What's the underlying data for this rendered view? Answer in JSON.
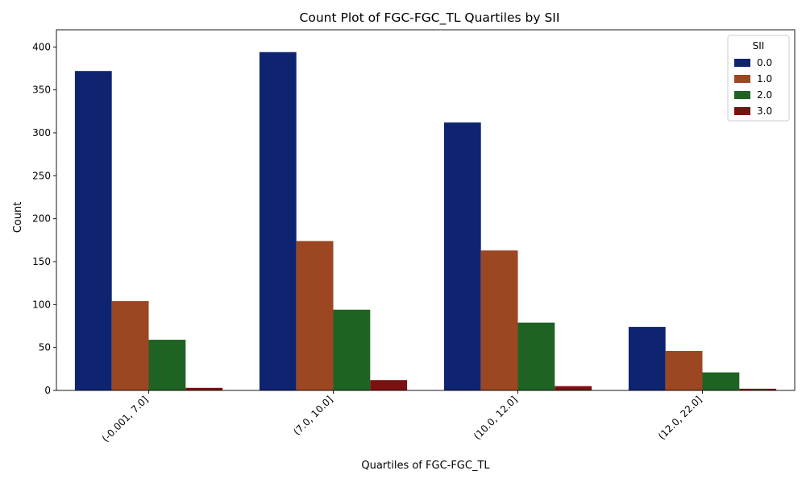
{
  "chart_data": {
    "type": "bar",
    "title": "Count Plot of FGC-FGC_TL Quartiles by SII",
    "xlabel": "Quartiles of FGC-FGC_TL",
    "ylabel": "Count",
    "categories": [
      "(-0.001, 7.0]",
      "(7.0, 10.0]",
      "(10.0, 12.0]",
      "(12.0, 22.0]"
    ],
    "ylim": [
      0,
      420
    ],
    "yticks": [
      0,
      50,
      100,
      150,
      200,
      250,
      300,
      350,
      400
    ],
    "grid": false,
    "legend": {
      "title": "SII",
      "placement": "top-right"
    },
    "series": [
      {
        "name": "0.0",
        "color": "#0f2470",
        "values": [
          372,
          394,
          312,
          74
        ]
      },
      {
        "name": "1.0",
        "color": "#9c4622",
        "values": [
          104,
          174,
          163,
          46
        ]
      },
      {
        "name": "2.0",
        "color": "#1e6324",
        "values": [
          59,
          94,
          79,
          21
        ]
      },
      {
        "name": "3.0",
        "color": "#7a1212",
        "values": [
          3,
          12,
          5,
          2
        ]
      }
    ]
  }
}
